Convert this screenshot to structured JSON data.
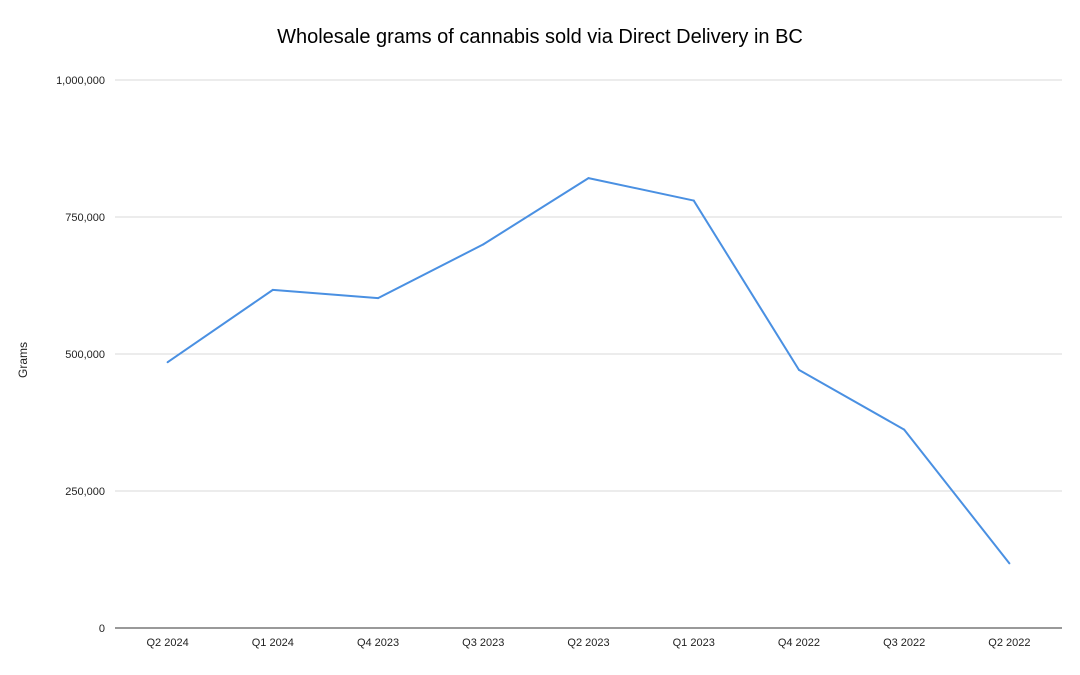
{
  "chart_data": {
    "type": "line",
    "title": "Wholesale grams of cannabis sold via Direct Delivery in BC",
    "xlabel": "",
    "ylabel": "Grams",
    "categories": [
      "Q2 2024",
      "Q1 2024",
      "Q4 2023",
      "Q3 2023",
      "Q2 2023",
      "Q1 2023",
      "Q4 2022",
      "Q3 2022",
      "Q2 2022"
    ],
    "series": [
      {
        "name": "",
        "values": [
          485000,
          617000,
          602000,
          700000,
          821000,
          780000,
          471000,
          362000,
          118000
        ],
        "color": "#4a90e2"
      }
    ],
    "ylim": [
      0,
      1000000
    ],
    "yticks": [
      0,
      250000,
      500000,
      750000,
      1000000
    ],
    "ytick_labels": [
      "0",
      "250,000",
      "500,000",
      "750,000",
      "1,000,000"
    ],
    "grid": true,
    "legend": "none",
    "colors": {
      "line": "#4a90e2",
      "grid": "#d9d9d9",
      "axis": "#333333",
      "text": "#222222"
    }
  }
}
